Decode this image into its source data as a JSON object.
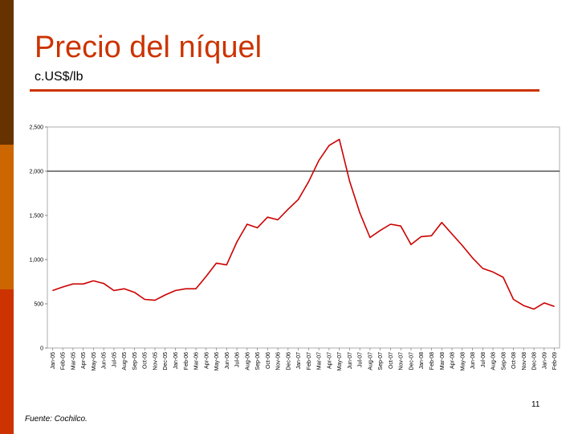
{
  "slide": {
    "title": "Precio del níquel",
    "subtitle": "c.US$/lb",
    "source": "Fuente: Cochilco.",
    "page_number": "11"
  },
  "colors": {
    "title": "#cc3300",
    "rule": "#cc3300",
    "line": "#cc0000",
    "stripe_top": "#663300",
    "stripe_mid": "#cc6600",
    "stripe_bottom": "#cc3300"
  },
  "chart_data": {
    "type": "line",
    "title": "",
    "xlabel": "",
    "ylabel": "",
    "ylim": [
      0,
      2500
    ],
    "yticks": [
      0,
      500,
      1000,
      1500,
      2000,
      2500
    ],
    "ytick_labels": [
      "0",
      "500",
      "1,000",
      "1,500",
      "2,000",
      "2,500"
    ],
    "reference_line": 2000,
    "grid": false,
    "legend": "none",
    "categories": [
      "Jan-05",
      "Feb-05",
      "Mar-05",
      "Apr-05",
      "May-05",
      "Jun-05",
      "Jul-05",
      "Aug-05",
      "Sep-05",
      "Oct-05",
      "Nov-05",
      "Dec-05",
      "Jan-06",
      "Feb-06",
      "Mar-06",
      "Apr-06",
      "May-06",
      "Jun-06",
      "Jul-06",
      "Aug-06",
      "Sep-06",
      "Oct-06",
      "Nov-06",
      "Dec-06",
      "Jan-07",
      "Feb-07",
      "Mar-07",
      "Apr-07",
      "May-07",
      "Jun-07",
      "Jul-07",
      "Aug-07",
      "Sep-07",
      "Oct-07",
      "Nov-07",
      "Dec-07",
      "Jan-08",
      "Feb-08",
      "Mar-08",
      "Apr-08",
      "May-08",
      "Jun-08",
      "Jul-08",
      "Aug-08",
      "Sep-08",
      "Oct-08",
      "Nov-08",
      "Dec-08",
      "Jan-09",
      "Feb-09"
    ],
    "values": [
      650,
      690,
      725,
      725,
      760,
      730,
      650,
      670,
      630,
      550,
      540,
      600,
      650,
      670,
      670,
      810,
      960,
      940,
      1200,
      1400,
      1360,
      1480,
      1450,
      1570,
      1680,
      1880,
      2120,
      2290,
      2360,
      1890,
      1530,
      1250,
      1330,
      1400,
      1380,
      1170,
      1260,
      1270,
      1420,
      1290,
      1160,
      1020,
      900,
      860,
      800,
      550,
      480,
      440,
      510,
      470
    ]
  }
}
